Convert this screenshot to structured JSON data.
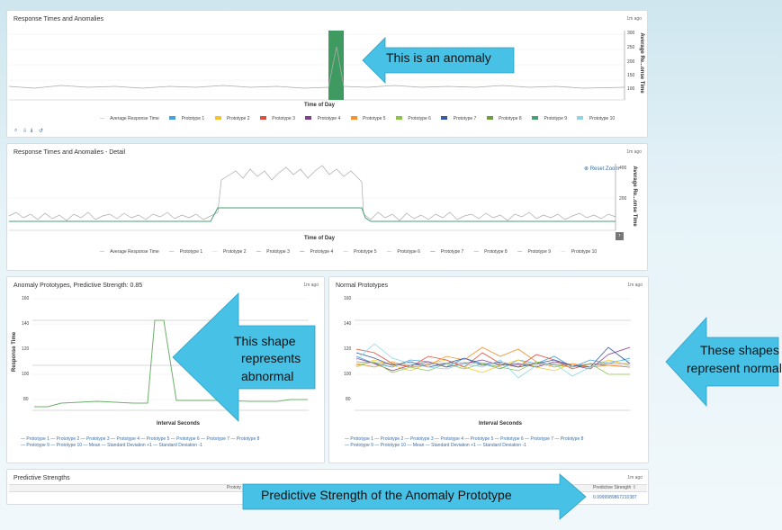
{
  "panel1": {
    "title": "Response Times and Anomalies",
    "ago": "1m ago",
    "xlabel": "Time of Day",
    "ylabel": "Average Re...onse Time",
    "yticks": [
      "300",
      "250",
      "200",
      "150",
      "100"
    ],
    "legend": [
      {
        "label": "Average Response Time",
        "color": "#999999"
      },
      {
        "label": "Prototype 1",
        "color": "#4a9fd5"
      },
      {
        "label": "Prototype 2",
        "color": "#f5c623"
      },
      {
        "label": "Prototype 3",
        "color": "#e24d3b"
      },
      {
        "label": "Prototype 4",
        "color": "#7e3f8f"
      },
      {
        "label": "Prototype 5",
        "color": "#f29232"
      },
      {
        "label": "Prototype 6",
        "color": "#8ec24c"
      },
      {
        "label": "Prototype 7",
        "color": "#3a5aa0"
      },
      {
        "label": "Prototype 8",
        "color": "#6c9e3a"
      },
      {
        "label": "Prototype 9",
        "color": "#46a072"
      },
      {
        "label": "Prototype 10",
        "color": "#8ed6e6"
      }
    ],
    "tools": [
      "⌕",
      "⇩",
      "ℹ",
      "↺"
    ],
    "callout": "This is an anomaly"
  },
  "panel2": {
    "title": "Response Times and Anomalies - Detail",
    "ago": "1m ago",
    "xlabel": "Time of Day",
    "ylabel": "Average Re...onse Time",
    "yticks": [
      "400",
      "200"
    ],
    "reset": "Reset Zoom"
  },
  "panel3": {
    "title": "Anomaly Prototypes, Predictive Strength: 0.85",
    "ago": "1m ago",
    "xlabel": "Interval Seconds",
    "ylabel": "Response Time",
    "yticks": [
      "160",
      "140",
      "120",
      "100",
      "80"
    ],
    "legend_row1": "— Prototype 1   — Prototype 2   — Prototype 3   — Prototype 4   — Prototype 5   — Prototype 6   — Prototype 7   — Prototype 8",
    "legend_row2": "— Prototype 9   — Prototype 10   — Mean   — Standard Deviation +1   — Standard Deviation -1",
    "callout": [
      "This shape",
      "represents",
      "abnormal"
    ]
  },
  "panel4": {
    "title": "Normal Prototypes",
    "ago": "1m ago",
    "xlabel": "Interval Seconds",
    "yticks": [
      "160",
      "140",
      "120",
      "100",
      "80"
    ],
    "legend_row1": "— Prototype 1   — Prototype 2   — Prototype 3   — Prototype 4   — Prototype 5   — Prototype 6   — Prototype 7   — Prototype 8",
    "legend_row2": "— Prototype 9   — Prototype 10   — Mean   — Standard Deviation +1   — Standard Deviation -1"
  },
  "callout_normal": [
    "These shapes",
    "represent normal"
  ],
  "panel5": {
    "title": "Predictive Strengths",
    "ago": "1m ago",
    "col1": "Prototy",
    "col2": "Predictive Strength ⇧",
    "value": "0.9999989867210387",
    "callout": "Predictive Strength of the Anomaly Prototype"
  },
  "chart_data": [
    {
      "type": "line",
      "title": "Response Times and Anomalies",
      "xlabel": "Time of Day",
      "ylabel": "Average Re...onse Time",
      "ylim": [
        100,
        300
      ],
      "series": [
        {
          "name": "Average Response Time",
          "values": [
            100,
            101,
            99,
            100,
            102,
            98,
            101,
            100,
            99,
            101,
            100,
            102,
            99,
            100,
            101,
            100,
            260,
            100,
            99,
            101,
            100,
            100,
            102,
            99,
            100,
            101,
            100,
            99,
            100,
            101
          ]
        }
      ]
    },
    {
      "type": "line",
      "title": "Anomaly Prototypes, Predictive Strength: 0.85",
      "xlabel": "Interval Seconds",
      "ylabel": "Response Time",
      "ylim": [
        60,
        160
      ],
      "series": [
        {
          "name": "Prototype",
          "values": [
            72,
            72,
            74,
            75,
            75,
            75,
            74,
            74,
            140,
            140,
            76,
            76,
            75,
            75,
            75,
            75,
            76,
            76
          ]
        }
      ]
    }
  ]
}
